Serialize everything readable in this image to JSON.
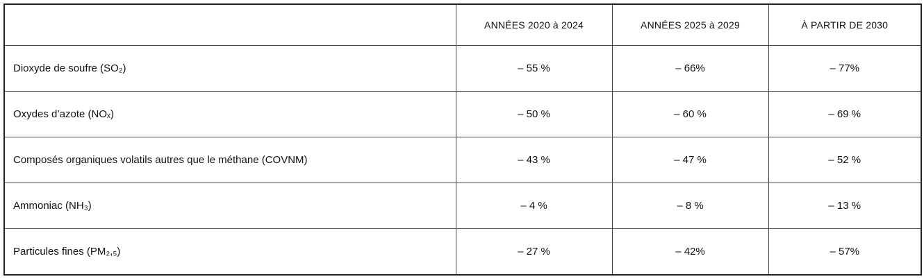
{
  "table": {
    "header": [
      "ANNÉES 2020 à 2024",
      "ANNÉES 2025 à 2029",
      "À PARTIR DE 2030"
    ],
    "rows": [
      [
        "Dioxyde de soufre (SO₂)",
        "– 55 %",
        "– 66%",
        "– 77%"
      ],
      [
        "Oxydes d’azote (NOₓ)",
        "– 50 %",
        "– 60 %",
        "– 69 %"
      ],
      [
        "Composés organiques volatils autres que le méthane (COVNM)",
        "– 43 %",
        "– 47 %",
        "– 52 %"
      ],
      [
        "Ammoniac (NH₃)",
        "– 4 %",
        "– 8 %",
        "– 13 %"
      ],
      [
        "Particules fines (PM₂,₅)",
        "– 27 %",
        "– 42%",
        "– 57%"
      ]
    ]
  }
}
